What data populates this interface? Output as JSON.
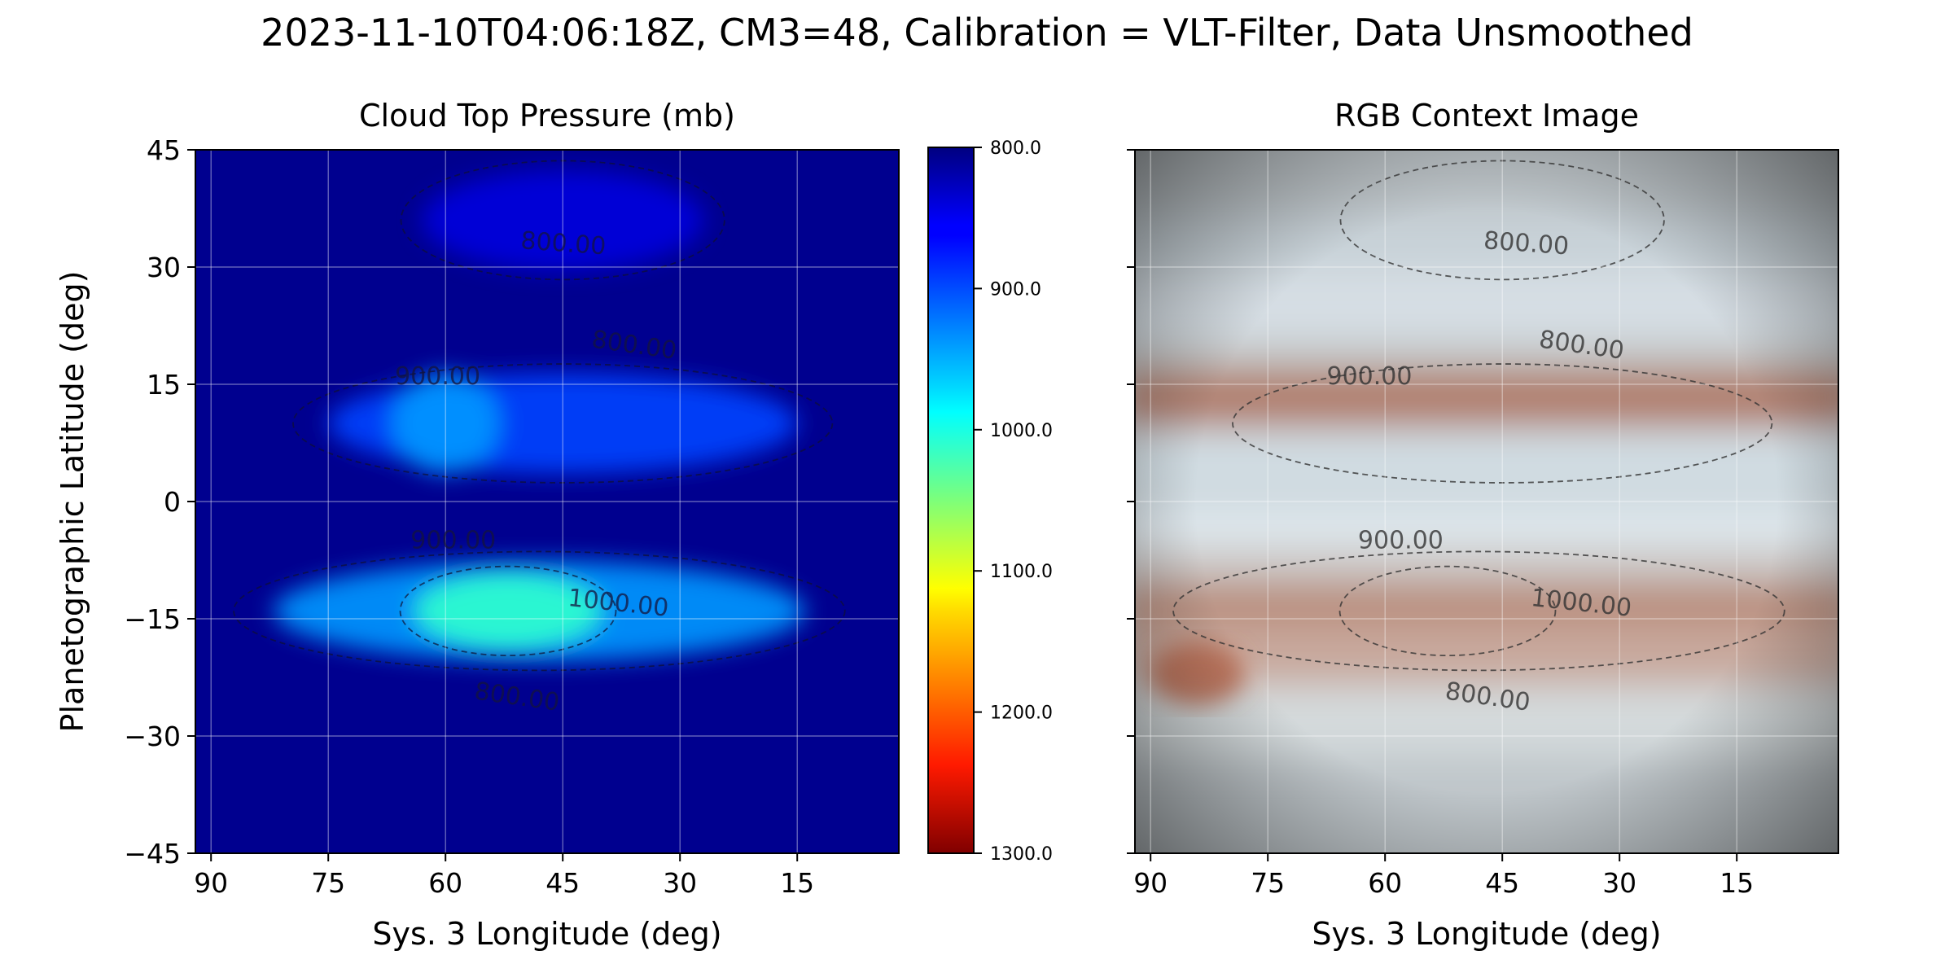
{
  "figure": {
    "suptitle": "2023-11-10T04:06:18Z, CM3=48, Calibration = VLT-Filter, Data Unsmoothed"
  },
  "chart_data": [
    {
      "type": "heatmap",
      "title": "Cloud Top Pressure (mb)",
      "xlabel": "Sys. 3 Longitude (deg)",
      "ylabel": "Planetographic Latitude (deg)",
      "xlim": [
        92,
        2
      ],
      "ylim": [
        -45,
        45
      ],
      "xticks": [
        "90",
        "75",
        "60",
        "45",
        "30",
        "15"
      ],
      "xtick_values": [
        90,
        75,
        60,
        45,
        30,
        15
      ],
      "yticks": [
        "45",
        "30",
        "15",
        "0",
        "−15",
        "−30",
        "−45"
      ],
      "ytick_values": [
        45,
        30,
        15,
        0,
        -15,
        -30,
        -45
      ],
      "grid": true,
      "colormap": "jet",
      "colorbar": {
        "range": [
          800,
          1300
        ],
        "ticks": [
          "800.0",
          "900.0",
          "1000.0",
          "1100.0",
          "1200.0",
          "1300.0"
        ],
        "tick_values": [
          800,
          900,
          1000,
          1100,
          1200,
          1300
        ],
        "direction": "reversed"
      },
      "features": [
        {
          "lon": 45,
          "lat": 36,
          "dlon": 18,
          "dlat": 4,
          "value": 840
        },
        {
          "lon": 45,
          "lat": 10,
          "dlon": 30,
          "dlat": 4,
          "value": 890
        },
        {
          "lon": 60,
          "lat": 10,
          "dlon": 7,
          "dlat": 4,
          "value": 935
        },
        {
          "lon": 48,
          "lat": -14,
          "dlon": 34,
          "dlat": 4,
          "value": 935
        },
        {
          "lon": 52,
          "lat": -14,
          "dlon": 12,
          "dlat": 3,
          "value": 1010
        }
      ],
      "contour_labels": [
        {
          "text": "800.00",
          "lon": 45,
          "lat": 32,
          "angle": 4
        },
        {
          "text": "800.00",
          "lon": 36,
          "lat": 19,
          "angle": 8
        },
        {
          "text": "900.00",
          "lon": 61,
          "lat": 15,
          "angle": 0
        },
        {
          "text": "900.00",
          "lon": 59,
          "lat": -6,
          "angle": 0
        },
        {
          "text": "1000.00",
          "lon": 38,
          "lat": -14,
          "angle": 6
        },
        {
          "text": "800.00",
          "lon": 51,
          "lat": -26,
          "angle": 8
        }
      ]
    },
    {
      "type": "heatmap",
      "title": "RGB Context Image",
      "xlabel": "Sys. 3 Longitude (deg)",
      "xlim": [
        92,
        2
      ],
      "ylim": [
        -45,
        45
      ],
      "xticks": [
        "90",
        "75",
        "60",
        "45",
        "30",
        "15"
      ],
      "xtick_values": [
        90,
        75,
        60,
        45,
        30,
        15
      ],
      "ytick_values": [
        45,
        30,
        15,
        0,
        -15,
        -30,
        -45
      ],
      "grid": true,
      "bands": [
        {
          "lat": 32,
          "color": "#c8d2d8"
        },
        {
          "lat": 25,
          "color": "#d6dee4"
        },
        {
          "lat": 15,
          "color": "#c4c2c0"
        },
        {
          "lat": 12,
          "color": "#b07a68"
        },
        {
          "lat": 5,
          "color": "#d0dce2"
        },
        {
          "lat": -5,
          "color": "#e0eaf0"
        },
        {
          "lat": -10,
          "color": "#ccc8c6"
        },
        {
          "lat": -15,
          "color": "#b88a78"
        },
        {
          "lat": -20,
          "color": "#c8a89c"
        },
        {
          "lat": -28,
          "color": "#d4dadc"
        }
      ],
      "great_red_spot": {
        "lon": 84,
        "lat": -22,
        "color": "#b86a50"
      },
      "contour_labels": [
        {
          "text": "800.00",
          "lon": 42,
          "lat": 32,
          "angle": 4
        },
        {
          "text": "800.00",
          "lon": 35,
          "lat": 19,
          "angle": 8
        },
        {
          "text": "900.00",
          "lon": 62,
          "lat": 15,
          "angle": 0
        },
        {
          "text": "900.00",
          "lon": 58,
          "lat": -6,
          "angle": 0
        },
        {
          "text": "1000.00",
          "lon": 35,
          "lat": -14,
          "angle": 6
        },
        {
          "text": "800.00",
          "lon": 47,
          "lat": -26,
          "angle": 8
        }
      ]
    }
  ]
}
